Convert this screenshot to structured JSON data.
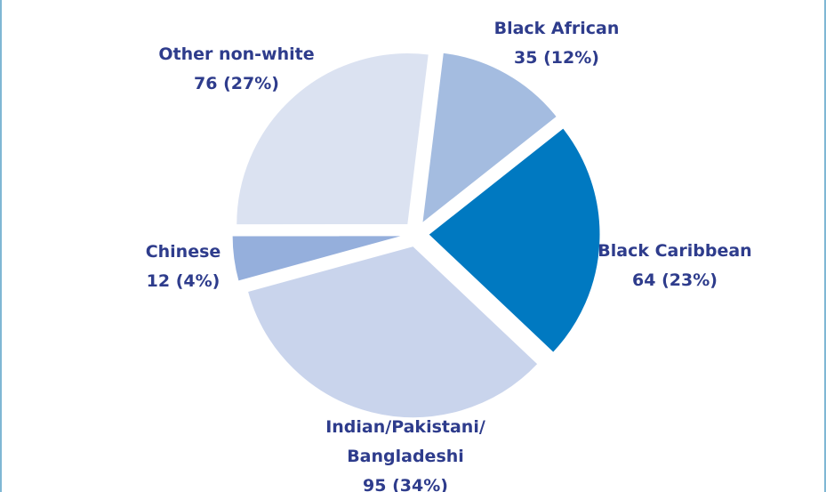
{
  "chart_data": {
    "type": "pie",
    "title": "",
    "categories": [
      "Black African",
      "Black Caribbean",
      "Indian/Pakistani/Bangladeshi",
      "Chinese",
      "Other non-white"
    ],
    "values": [
      35,
      64,
      95,
      12,
      76
    ],
    "percentages": [
      12,
      23,
      34,
      4,
      27
    ],
    "labels": [
      {
        "lines": [
          "Black African",
          "35 (12%)"
        ]
      },
      {
        "lines": [
          "Black Caribbean",
          "64 (23%)"
        ]
      },
      {
        "lines": [
          "Indian/Pakistani/",
          "Bangladeshi",
          "95 (34%)"
        ]
      },
      {
        "lines": [
          "Chinese",
          "12 (4%)"
        ]
      },
      {
        "lines": [
          "Other non-white",
          "76 (27%)"
        ]
      }
    ],
    "colors": [
      "#a4bce0",
      "#0079c1",
      "#c9d4ec",
      "#95afdc",
      "#dbe2f1"
    ],
    "label_color": "#2e3c8c",
    "exploded": true
  }
}
